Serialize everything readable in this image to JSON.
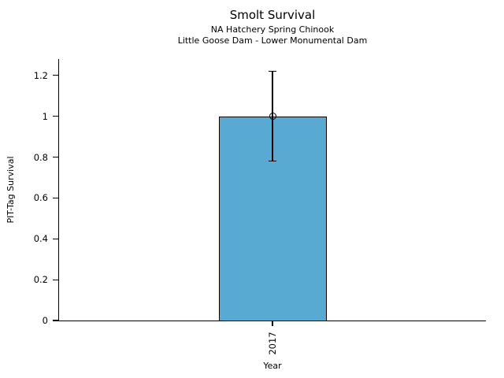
{
  "chart_data": {
    "type": "bar",
    "title": "Smolt Survival",
    "subtitle": [
      "NA Hatchery Spring Chinook",
      "Little Goose Dam - Lower Monumental Dam"
    ],
    "xlabel": "Year",
    "ylabel": "PIT-Tag Survival",
    "categories": [
      "2017"
    ],
    "values": [
      1.0
    ],
    "error_low": [
      0.78
    ],
    "error_high": [
      1.22
    ],
    "ylim": [
      0,
      1.28
    ],
    "yticks": [
      0,
      0.2,
      0.4,
      0.6,
      0.8,
      1,
      1.2
    ],
    "ytick_labels": [
      "0",
      "0.2",
      "0.4",
      "0.6",
      "0.8",
      "1",
      "1.2"
    ],
    "grid": false,
    "legend": null,
    "marker": "open-circle-at-bar-top",
    "bar_color": "#58AAD2",
    "bar_edge_color": "#000000",
    "error_color": "#000000",
    "axis_color": "#000000",
    "background_color": "#ffffff"
  }
}
